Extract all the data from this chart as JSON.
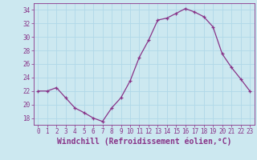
{
  "x": [
    0,
    1,
    2,
    3,
    4,
    5,
    6,
    7,
    8,
    9,
    10,
    11,
    12,
    13,
    14,
    15,
    16,
    17,
    18,
    19,
    20,
    21,
    22,
    23
  ],
  "y": [
    22,
    22,
    22.5,
    21,
    19.5,
    18.8,
    18,
    17.5,
    19.5,
    21,
    23.5,
    27,
    29.5,
    32.5,
    32.8,
    33.5,
    34.2,
    33.7,
    33,
    31.5,
    27.5,
    25.5,
    23.8,
    22
  ],
  "line_color": "#883388",
  "marker": "+",
  "marker_size": 3,
  "xlabel": "Windchill (Refroidissement éolien,°C)",
  "xlim": [
    -0.5,
    23.5
  ],
  "ylim": [
    17,
    35
  ],
  "yticks": [
    18,
    20,
    22,
    24,
    26,
    28,
    30,
    32,
    34
  ],
  "xticks": [
    0,
    1,
    2,
    3,
    4,
    5,
    6,
    7,
    8,
    9,
    10,
    11,
    12,
    13,
    14,
    15,
    16,
    17,
    18,
    19,
    20,
    21,
    22,
    23
  ],
  "background_color": "#cce8f0",
  "grid_color": "#b0d8e8",
  "tick_label_color": "#883388",
  "label_color": "#883388",
  "tick_fontsize": 5.5,
  "xlabel_fontsize": 7
}
